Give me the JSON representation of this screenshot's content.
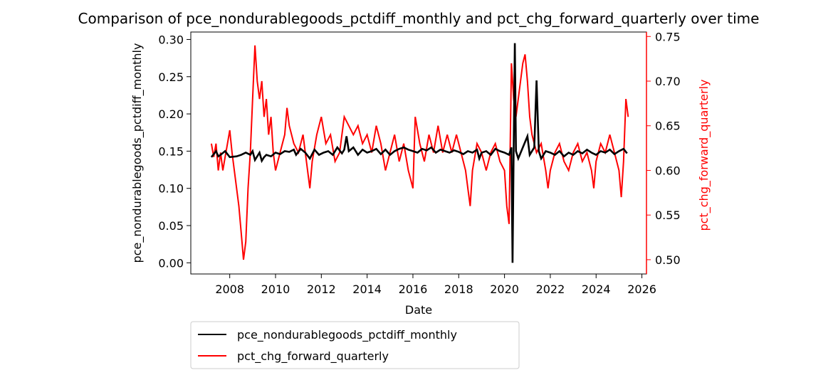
{
  "chart_data": {
    "type": "line",
    "title": "Comparison of pce_nondurablegoods_pctdiff_monthly and pct_chg_forward_quarterly over time",
    "xlabel": "Date",
    "ylabel_left": "pce_nondurablegoods_pctdiff_monthly",
    "ylabel_right": "pct_chg_forward_quarterly",
    "xlim": [
      2006.3,
      2026.2
    ],
    "ylim_left": [
      -0.015,
      0.31
    ],
    "ylim_right": [
      0.484,
      0.755
    ],
    "x_ticks": [
      2008,
      2010,
      2012,
      2014,
      2016,
      2018,
      2020,
      2022,
      2024,
      2026
    ],
    "y_ticks_left": [
      "0.00",
      "0.05",
      "0.10",
      "0.15",
      "0.20",
      "0.25",
      "0.30"
    ],
    "y_ticks_right": [
      "0.50",
      "0.55",
      "0.60",
      "0.65",
      "0.70",
      "0.75"
    ],
    "grid": false,
    "legend_position": "below-left",
    "colors": {
      "left": "#000000",
      "right": "#ff0000"
    },
    "series": [
      {
        "name": "pce_nondurablegoods_pctdiff_monthly",
        "axis": "left",
        "color": "#000000",
        "points": [
          [
            2007.2,
            0.142
          ],
          [
            2007.4,
            0.15
          ],
          [
            2007.5,
            0.143
          ],
          [
            2007.6,
            0.145
          ],
          [
            2007.8,
            0.15
          ],
          [
            2008.0,
            0.142
          ],
          [
            2008.3,
            0.143
          ],
          [
            2008.5,
            0.145
          ],
          [
            2008.7,
            0.148
          ],
          [
            2008.9,
            0.145
          ],
          [
            2009.0,
            0.15
          ],
          [
            2009.1,
            0.138
          ],
          [
            2009.3,
            0.148
          ],
          [
            2009.4,
            0.137
          ],
          [
            2009.5,
            0.142
          ],
          [
            2009.6,
            0.145
          ],
          [
            2009.8,
            0.143
          ],
          [
            2010.0,
            0.148
          ],
          [
            2010.2,
            0.146
          ],
          [
            2010.4,
            0.15
          ],
          [
            2010.6,
            0.149
          ],
          [
            2010.8,
            0.152
          ],
          [
            2010.9,
            0.145
          ],
          [
            2011.1,
            0.153
          ],
          [
            2011.3,
            0.148
          ],
          [
            2011.5,
            0.14
          ],
          [
            2011.7,
            0.152
          ],
          [
            2011.9,
            0.145
          ],
          [
            2012.1,
            0.148
          ],
          [
            2012.3,
            0.15
          ],
          [
            2012.5,
            0.145
          ],
          [
            2012.7,
            0.155
          ],
          [
            2012.9,
            0.147
          ],
          [
            2013.0,
            0.152
          ],
          [
            2013.1,
            0.17
          ],
          [
            2013.2,
            0.15
          ],
          [
            2013.4,
            0.155
          ],
          [
            2013.6,
            0.145
          ],
          [
            2013.8,
            0.152
          ],
          [
            2014.0,
            0.148
          ],
          [
            2014.2,
            0.15
          ],
          [
            2014.4,
            0.153
          ],
          [
            2014.6,
            0.146
          ],
          [
            2014.8,
            0.152
          ],
          [
            2015.0,
            0.145
          ],
          [
            2015.2,
            0.15
          ],
          [
            2015.4,
            0.153
          ],
          [
            2015.6,
            0.155
          ],
          [
            2015.8,
            0.152
          ],
          [
            2016.0,
            0.15
          ],
          [
            2016.2,
            0.148
          ],
          [
            2016.4,
            0.153
          ],
          [
            2016.6,
            0.151
          ],
          [
            2016.8,
            0.155
          ],
          [
            2017.0,
            0.148
          ],
          [
            2017.2,
            0.152
          ],
          [
            2017.4,
            0.15
          ],
          [
            2017.6,
            0.148
          ],
          [
            2017.8,
            0.151
          ],
          [
            2018.0,
            0.149
          ],
          [
            2018.2,
            0.146
          ],
          [
            2018.4,
            0.15
          ],
          [
            2018.6,
            0.148
          ],
          [
            2018.8,
            0.152
          ],
          [
            2018.9,
            0.14
          ],
          [
            2019.0,
            0.148
          ],
          [
            2019.2,
            0.15
          ],
          [
            2019.4,
            0.145
          ],
          [
            2019.6,
            0.153
          ],
          [
            2019.8,
            0.15
          ],
          [
            2020.0,
            0.148
          ],
          [
            2020.2,
            0.145
          ],
          [
            2020.3,
            0.155
          ],
          [
            2020.35,
            0.0
          ],
          [
            2020.4,
            0.155
          ],
          [
            2020.45,
            0.295
          ],
          [
            2020.5,
            0.15
          ],
          [
            2020.6,
            0.14
          ],
          [
            2020.8,
            0.155
          ],
          [
            2021.0,
            0.17
          ],
          [
            2021.1,
            0.145
          ],
          [
            2021.3,
            0.155
          ],
          [
            2021.4,
            0.245
          ],
          [
            2021.5,
            0.15
          ],
          [
            2021.6,
            0.14
          ],
          [
            2021.8,
            0.15
          ],
          [
            2022.0,
            0.148
          ],
          [
            2022.2,
            0.145
          ],
          [
            2022.4,
            0.15
          ],
          [
            2022.6,
            0.143
          ],
          [
            2022.8,
            0.148
          ],
          [
            2023.0,
            0.145
          ],
          [
            2023.2,
            0.15
          ],
          [
            2023.4,
            0.147
          ],
          [
            2023.6,
            0.152
          ],
          [
            2023.8,
            0.148
          ],
          [
            2024.0,
            0.145
          ],
          [
            2024.2,
            0.15
          ],
          [
            2024.4,
            0.148
          ],
          [
            2024.6,
            0.152
          ],
          [
            2024.8,
            0.146
          ],
          [
            2025.0,
            0.15
          ],
          [
            2025.2,
            0.153
          ],
          [
            2025.35,
            0.147
          ]
        ]
      },
      {
        "name": "pct_chg_forward_quarterly",
        "axis": "right",
        "color": "#ff0000",
        "points": [
          [
            2007.2,
            0.63
          ],
          [
            2007.3,
            0.615
          ],
          [
            2007.4,
            0.63
          ],
          [
            2007.5,
            0.6
          ],
          [
            2007.6,
            0.62
          ],
          [
            2007.7,
            0.6
          ],
          [
            2007.8,
            0.615
          ],
          [
            2007.9,
            0.63
          ],
          [
            2008.0,
            0.645
          ],
          [
            2008.1,
            0.62
          ],
          [
            2008.2,
            0.6
          ],
          [
            2008.3,
            0.58
          ],
          [
            2008.4,
            0.56
          ],
          [
            2008.5,
            0.53
          ],
          [
            2008.6,
            0.5
          ],
          [
            2008.7,
            0.52
          ],
          [
            2008.8,
            0.58
          ],
          [
            2008.9,
            0.62
          ],
          [
            2009.0,
            0.68
          ],
          [
            2009.1,
            0.74
          ],
          [
            2009.2,
            0.7
          ],
          [
            2009.3,
            0.68
          ],
          [
            2009.4,
            0.7
          ],
          [
            2009.5,
            0.66
          ],
          [
            2009.6,
            0.68
          ],
          [
            2009.7,
            0.64
          ],
          [
            2009.8,
            0.66
          ],
          [
            2009.9,
            0.62
          ],
          [
            2010.0,
            0.6
          ],
          [
            2010.2,
            0.62
          ],
          [
            2010.4,
            0.64
          ],
          [
            2010.5,
            0.67
          ],
          [
            2010.6,
            0.65
          ],
          [
            2010.8,
            0.63
          ],
          [
            2011.0,
            0.62
          ],
          [
            2011.2,
            0.64
          ],
          [
            2011.4,
            0.6
          ],
          [
            2011.5,
            0.58
          ],
          [
            2011.6,
            0.61
          ],
          [
            2011.8,
            0.64
          ],
          [
            2012.0,
            0.66
          ],
          [
            2012.2,
            0.63
          ],
          [
            2012.4,
            0.64
          ],
          [
            2012.6,
            0.61
          ],
          [
            2012.8,
            0.62
          ],
          [
            2013.0,
            0.66
          ],
          [
            2013.2,
            0.65
          ],
          [
            2013.4,
            0.64
          ],
          [
            2013.6,
            0.65
          ],
          [
            2013.8,
            0.63
          ],
          [
            2014.0,
            0.64
          ],
          [
            2014.2,
            0.62
          ],
          [
            2014.4,
            0.65
          ],
          [
            2014.6,
            0.63
          ],
          [
            2014.8,
            0.6
          ],
          [
            2015.0,
            0.62
          ],
          [
            2015.2,
            0.64
          ],
          [
            2015.4,
            0.61
          ],
          [
            2015.6,
            0.63
          ],
          [
            2015.8,
            0.6
          ],
          [
            2016.0,
            0.58
          ],
          [
            2016.1,
            0.66
          ],
          [
            2016.3,
            0.63
          ],
          [
            2016.5,
            0.61
          ],
          [
            2016.7,
            0.64
          ],
          [
            2016.9,
            0.62
          ],
          [
            2017.1,
            0.65
          ],
          [
            2017.3,
            0.62
          ],
          [
            2017.5,
            0.64
          ],
          [
            2017.7,
            0.62
          ],
          [
            2017.9,
            0.64
          ],
          [
            2018.1,
            0.62
          ],
          [
            2018.3,
            0.6
          ],
          [
            2018.4,
            0.58
          ],
          [
            2018.5,
            0.56
          ],
          [
            2018.6,
            0.6
          ],
          [
            2018.8,
            0.63
          ],
          [
            2019.0,
            0.62
          ],
          [
            2019.2,
            0.6
          ],
          [
            2019.4,
            0.62
          ],
          [
            2019.6,
            0.63
          ],
          [
            2019.8,
            0.61
          ],
          [
            2020.0,
            0.6
          ],
          [
            2020.1,
            0.56
          ],
          [
            2020.2,
            0.54
          ],
          [
            2020.3,
            0.72
          ],
          [
            2020.4,
            0.68
          ],
          [
            2020.5,
            0.66
          ],
          [
            2020.6,
            0.68
          ],
          [
            2020.7,
            0.7
          ],
          [
            2020.8,
            0.72
          ],
          [
            2020.9,
            0.73
          ],
          [
            2021.0,
            0.7
          ],
          [
            2021.1,
            0.66
          ],
          [
            2021.2,
            0.64
          ],
          [
            2021.4,
            0.62
          ],
          [
            2021.6,
            0.63
          ],
          [
            2021.8,
            0.6
          ],
          [
            2021.9,
            0.58
          ],
          [
            2022.0,
            0.6
          ],
          [
            2022.2,
            0.62
          ],
          [
            2022.4,
            0.63
          ],
          [
            2022.6,
            0.61
          ],
          [
            2022.8,
            0.6
          ],
          [
            2023.0,
            0.62
          ],
          [
            2023.2,
            0.63
          ],
          [
            2023.4,
            0.61
          ],
          [
            2023.6,
            0.62
          ],
          [
            2023.8,
            0.6
          ],
          [
            2023.9,
            0.58
          ],
          [
            2024.0,
            0.61
          ],
          [
            2024.2,
            0.63
          ],
          [
            2024.4,
            0.62
          ],
          [
            2024.6,
            0.64
          ],
          [
            2024.8,
            0.62
          ],
          [
            2025.0,
            0.6
          ],
          [
            2025.1,
            0.57
          ],
          [
            2025.2,
            0.61
          ],
          [
            2025.3,
            0.68
          ],
          [
            2025.4,
            0.66
          ]
        ]
      }
    ]
  }
}
